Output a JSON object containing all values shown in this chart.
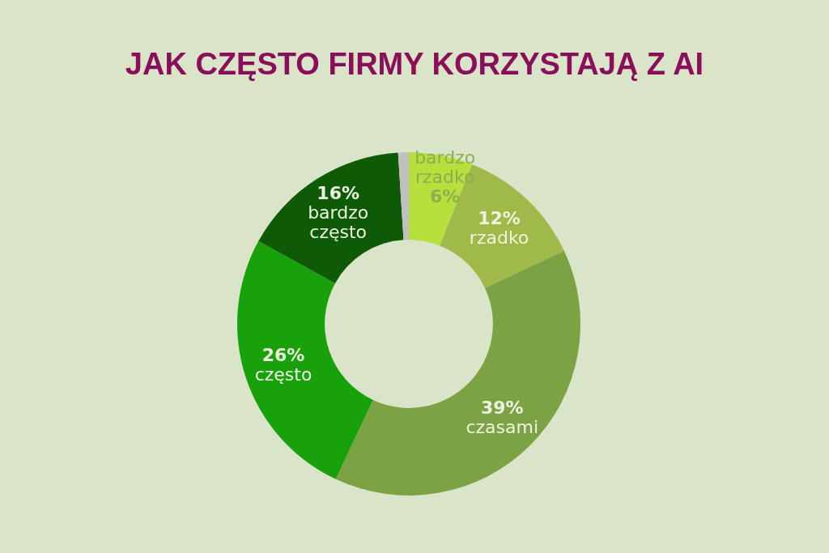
{
  "chart_data": {
    "type": "donut",
    "title": "JAK CZĘSTO FIRMY KORZYSTAJĄ Z AI",
    "categories": [
      "bardzo rzadko",
      "rzadko",
      "czasami",
      "często",
      "bardzo często",
      null
    ],
    "values": [
      6,
      12,
      39,
      26,
      16,
      1
    ],
    "colors": [
      "#b7e03c",
      "#9fba48",
      "#7ba343",
      "#19a10b",
      "#0f5a06",
      "#c0c0c0"
    ],
    "value_labels": [
      "6%",
      "12%",
      "39%",
      "26%",
      "16%",
      null
    ]
  }
}
